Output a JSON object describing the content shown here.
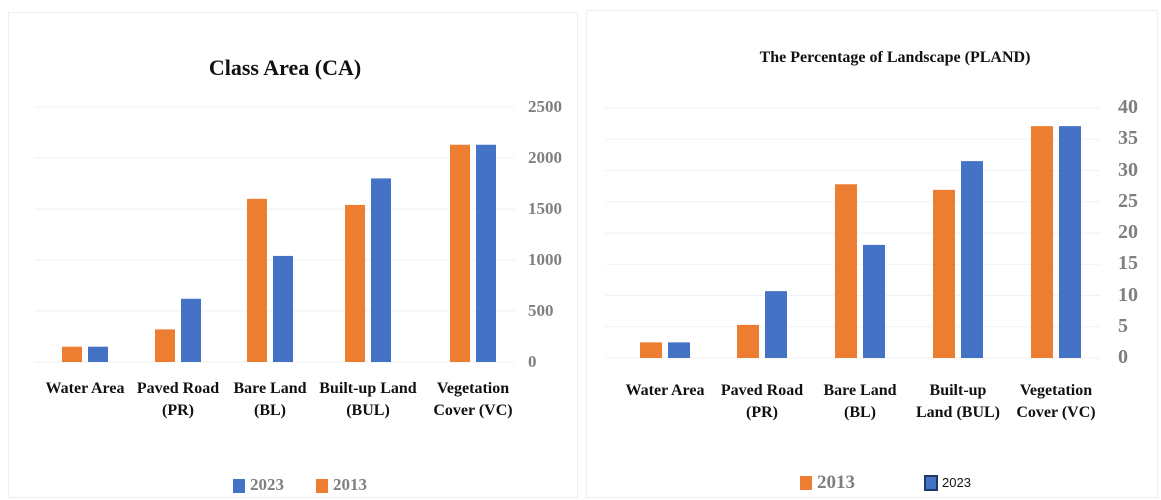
{
  "chart_data": [
    {
      "type": "bar",
      "title": "Class Area (CA)",
      "categories": [
        "Water Area",
        "Paved Road (PR)",
        "Bare Land (BL)",
        "Built-up Land (BUL)",
        "Vegetation Cover (VC)"
      ],
      "series": [
        {
          "name": "2023",
          "color": "#4472c4",
          "values": [
            150,
            620,
            1040,
            1800,
            2130
          ]
        },
        {
          "name": "2013",
          "color": "#ed7d31",
          "values": [
            150,
            320,
            1600,
            1540,
            2130
          ]
        }
      ],
      "ylim": [
        0,
        2500
      ],
      "yticks": [
        0,
        500,
        1000,
        1500,
        2000,
        2500
      ],
      "grid": true
    },
    {
      "type": "bar",
      "title": "The Percentage of Landscape (PLAND)",
      "categories": [
        "Water Area",
        "Paved Road (PR)",
        "Bare Land (BL)",
        "Built-up Land (BUL)",
        "Vegetation Cover (VC)"
      ],
      "series": [
        {
          "name": "2013",
          "color": "#ed7d31",
          "values": [
            2.5,
            5.3,
            27.8,
            26.9,
            37.1
          ]
        },
        {
          "name": "2023",
          "color": "#4472c4",
          "values": [
            2.5,
            10.7,
            18.1,
            31.5,
            37.1
          ]
        }
      ],
      "ylim": [
        0,
        40
      ],
      "yticks": [
        0,
        5,
        10,
        15,
        20,
        25,
        30,
        35,
        40
      ],
      "grid": true
    }
  ]
}
